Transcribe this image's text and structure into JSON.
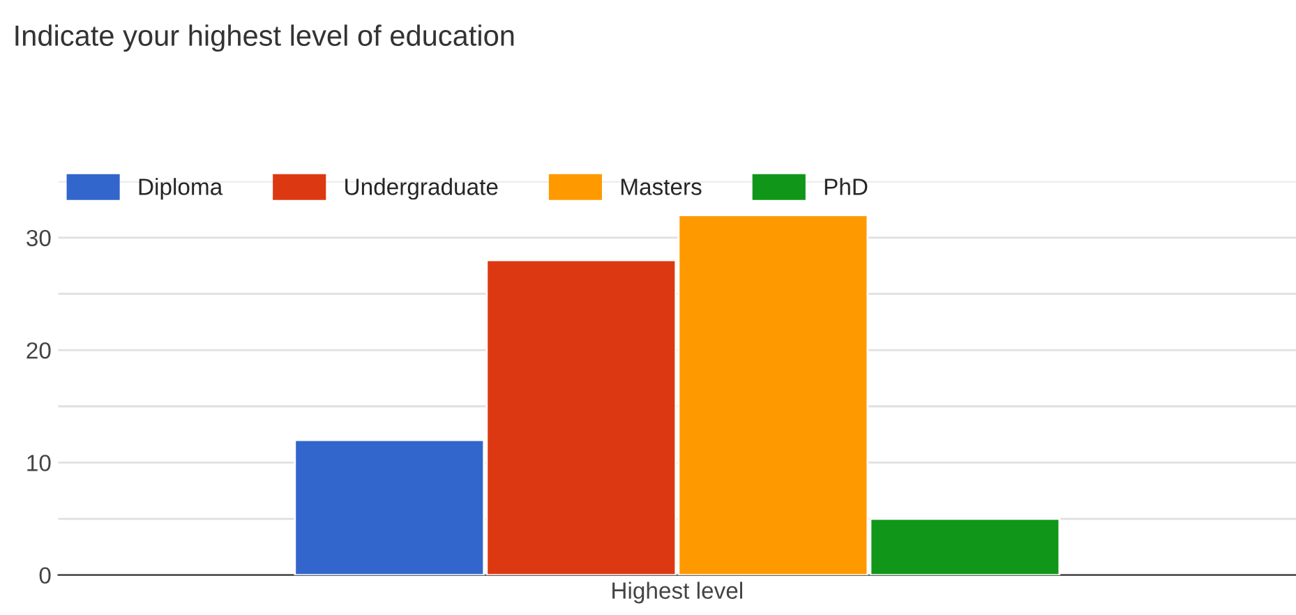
{
  "chart_data": {
    "type": "bar",
    "title": "Indicate your highest level of education",
    "categories": [
      "Highest level"
    ],
    "series": [
      {
        "name": "Diploma",
        "color": "#3366cc",
        "values": [
          12
        ]
      },
      {
        "name": "Undergraduate",
        "color": "#dc3912",
        "values": [
          28
        ]
      },
      {
        "name": "Masters",
        "color": "#ff9900",
        "values": [
          32
        ]
      },
      {
        "name": "PhD",
        "color": "#109618",
        "values": [
          5
        ]
      }
    ],
    "ylim": [
      0,
      35
    ],
    "yticks": [
      0,
      {
        "value": 5,
        "label": null
      },
      10,
      {
        "value": 15,
        "label": null
      },
      20,
      {
        "value": 25,
        "label": null
      },
      30,
      {
        "value": 35,
        "label": null
      }
    ],
    "grid": "y",
    "legend": "top left"
  }
}
